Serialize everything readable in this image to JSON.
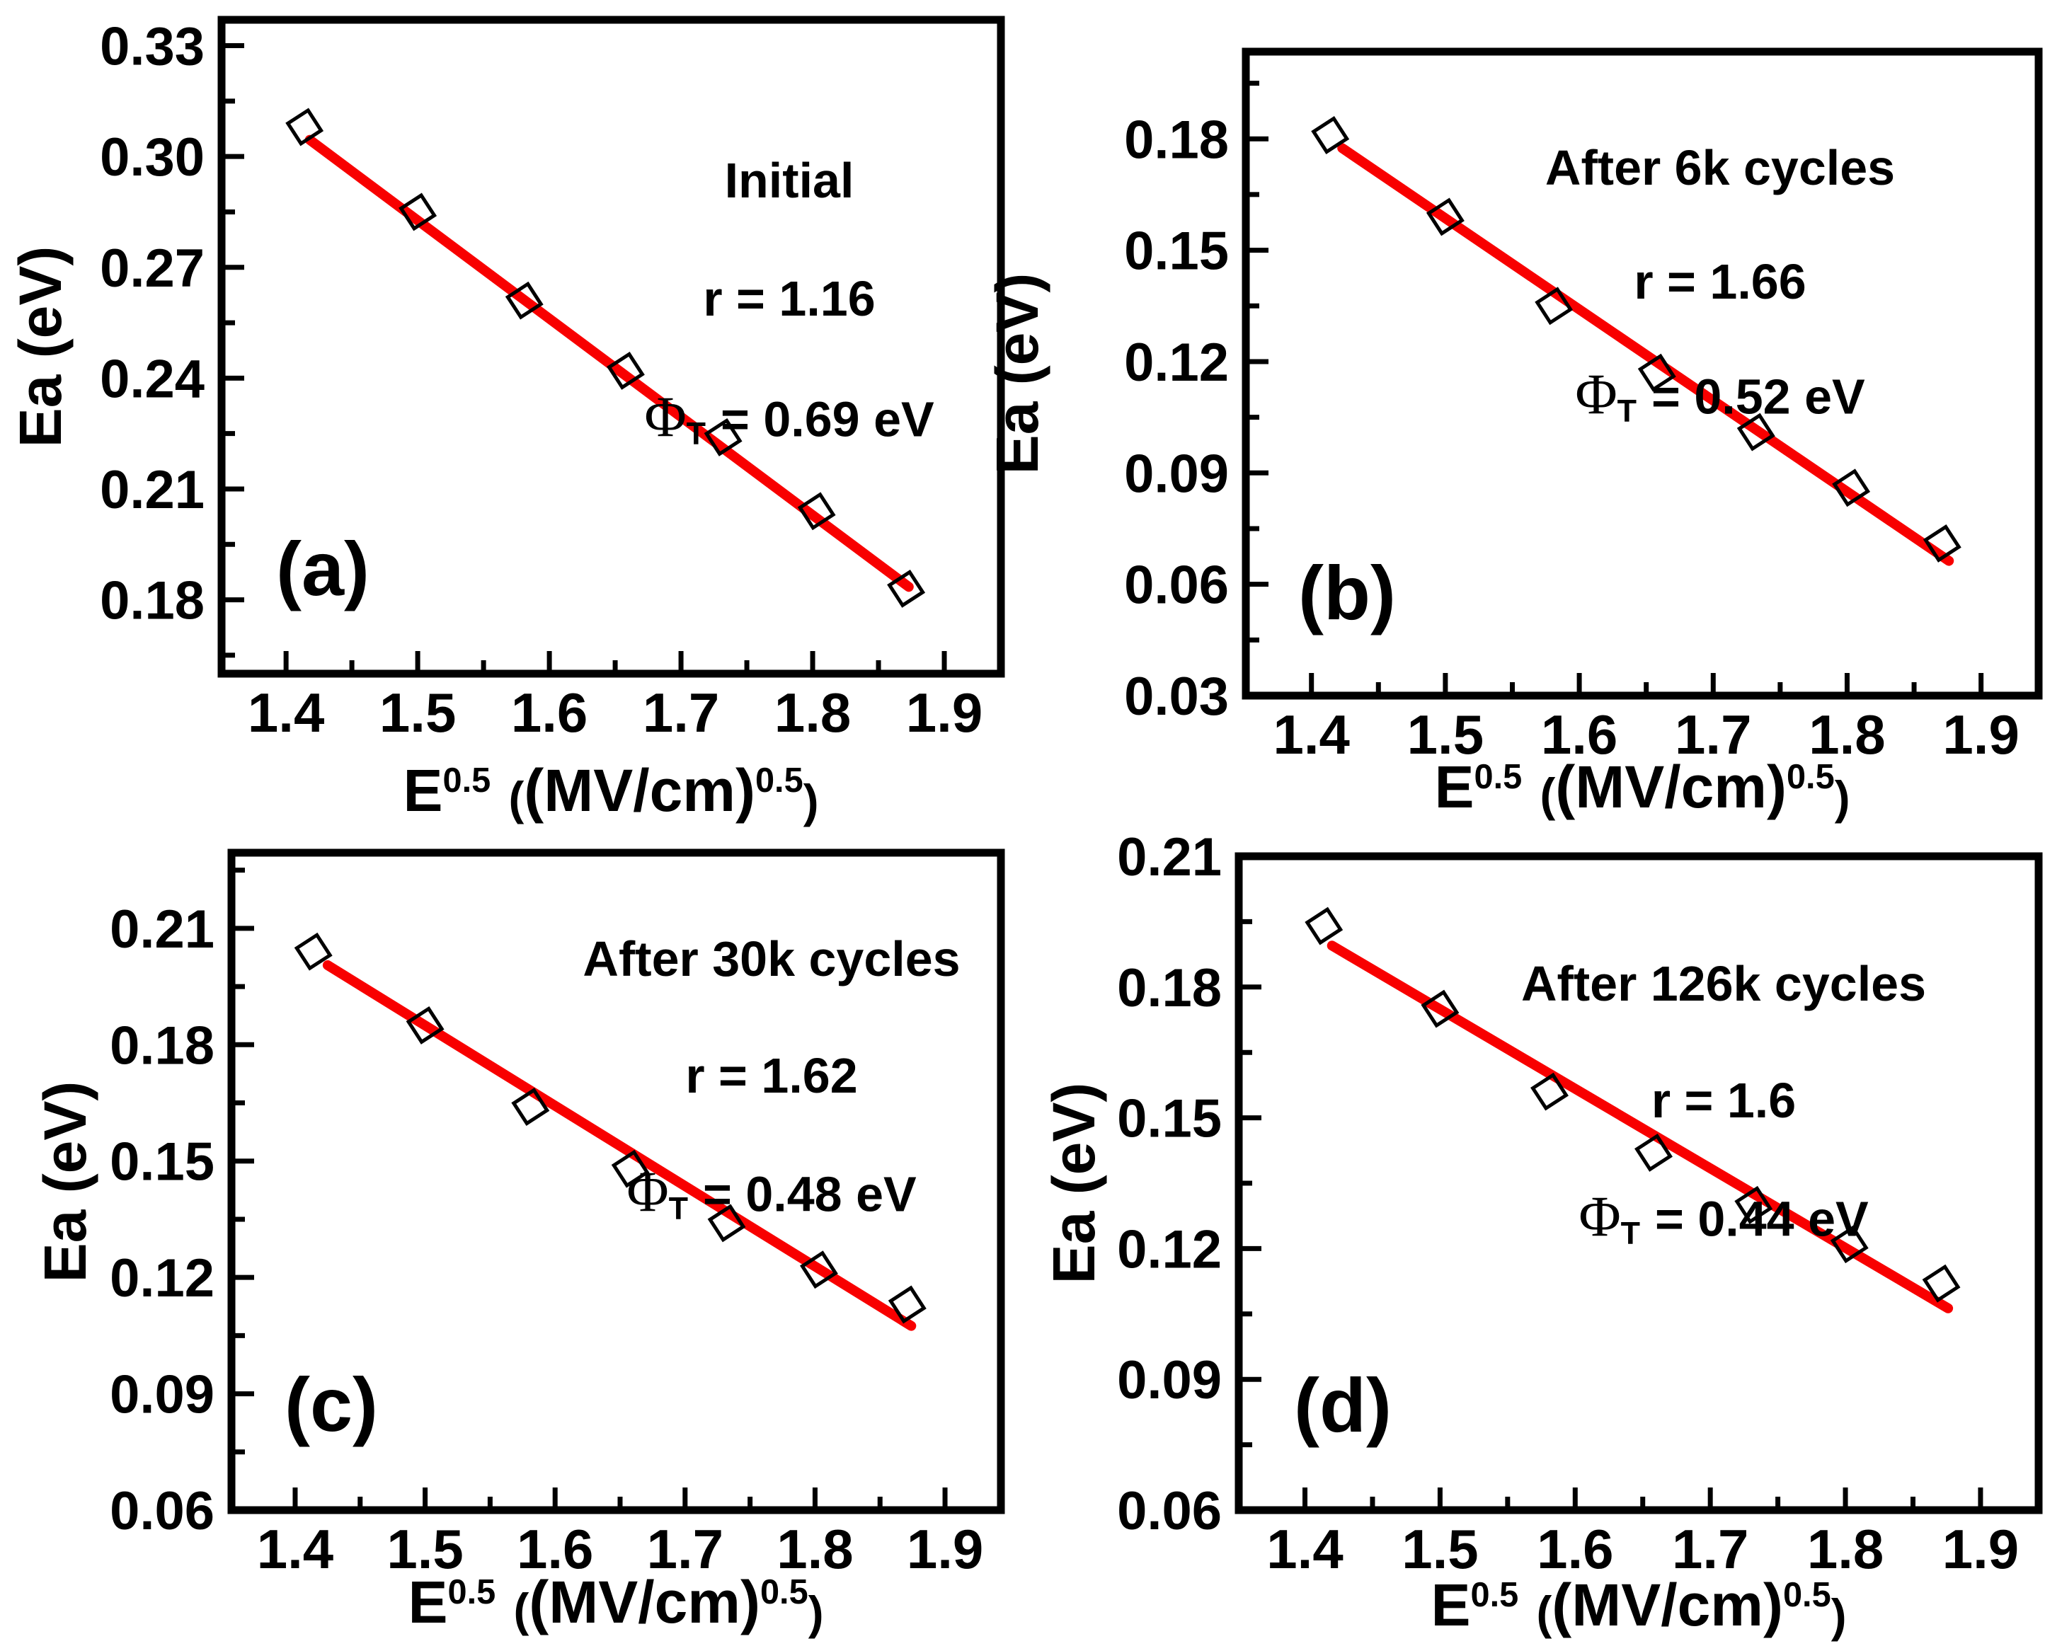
{
  "figure": {
    "background": "#ffffff",
    "ink": "#000000",
    "accent_red": "#f80000",
    "ylabel": "Ea (eV)",
    "xlabel": {
      "base": "E",
      "sup1": "0.5",
      "open": "(",
      "inner": "(MV/cm)",
      "sup2": "0.5",
      "close": ")"
    }
  },
  "chart_data": [
    {
      "type": "scatter",
      "panel_label": "(a)",
      "annotation": {
        "title": "Initial",
        "r_text": "r = 1.16",
        "phi_symbol": "Φ",
        "phi_sub": "T",
        "phi_value": "= 0.69 eV"
      },
      "x": [
        1.414,
        1.5,
        1.581,
        1.658,
        1.732,
        1.803,
        1.871
      ],
      "y": [
        0.308,
        0.285,
        0.261,
        0.242,
        0.224,
        0.204,
        0.183
      ],
      "fit": {
        "x": [
          1.418,
          1.873
        ],
        "y": [
          0.3045,
          0.1835
        ]
      },
      "xlim": [
        1.351,
        1.943
      ],
      "ylim": [
        0.16,
        0.337
      ],
      "xticks": {
        "values": [
          1.4,
          1.5,
          1.6,
          1.7,
          1.8,
          1.9
        ],
        "labels": [
          "1.4",
          "1.5",
          "1.6",
          "1.7",
          "1.8",
          "1.9"
        ]
      },
      "yticks": {
        "values": [
          0.18,
          0.21,
          0.24,
          0.27,
          0.3,
          0.33
        ],
        "labels": [
          "0.18",
          "0.21",
          "0.24",
          "0.27",
          "0.30",
          "0.33"
        ]
      }
    },
    {
      "type": "scatter",
      "panel_label": "(b)",
      "annotation": {
        "title": "After 6k cycles",
        "r_text": "r = 1.66",
        "phi_symbol": "Φ",
        "phi_sub": "T",
        "phi_value": "= 0.52 eV"
      },
      "x": [
        1.414,
        1.5,
        1.581,
        1.658,
        1.732,
        1.803,
        1.871
      ],
      "y": [
        0.181,
        0.159,
        0.135,
        0.117,
        0.101,
        0.086,
        0.071
      ],
      "fit": {
        "x": [
          1.423,
          1.876
        ],
        "y": [
          0.1775,
          0.0663
        ]
      },
      "xlim": [
        1.351,
        1.943
      ],
      "ylim": [
        0.03,
        0.2035
      ],
      "xticks": {
        "values": [
          1.4,
          1.5,
          1.6,
          1.7,
          1.8,
          1.9
        ],
        "labels": [
          "1.4",
          "1.5",
          "1.6",
          "1.7",
          "1.8",
          "1.9"
        ]
      },
      "yticks": {
        "values": [
          0.03,
          0.06,
          0.09,
          0.12,
          0.15,
          0.18
        ],
        "labels": [
          "0.03",
          "0.06",
          "0.09",
          "0.12",
          "0.15",
          "0.18"
        ]
      }
    },
    {
      "type": "scatter",
      "panel_label": "(c)",
      "annotation": {
        "title": "After 30k cycles",
        "r_text": "r = 1.62",
        "phi_symbol": "Φ",
        "phi_sub": "T",
        "phi_value": "= 0.48 eV"
      },
      "x": [
        1.414,
        1.5,
        1.581,
        1.658,
        1.732,
        1.803,
        1.871
      ],
      "y": [
        0.204,
        0.185,
        0.164,
        0.148,
        0.134,
        0.122,
        0.113
      ],
      "fit": {
        "x": [
          1.425,
          1.874
        ],
        "y": [
          0.2005,
          0.1075
        ]
      },
      "xlim": [
        1.351,
        1.943
      ],
      "ylim": [
        0.06,
        0.2295
      ],
      "xticks": {
        "values": [
          1.4,
          1.5,
          1.6,
          1.7,
          1.8,
          1.9
        ],
        "labels": [
          "1.4",
          "1.5",
          "1.6",
          "1.7",
          "1.8",
          "1.9"
        ]
      },
      "yticks": {
        "values": [
          0.06,
          0.09,
          0.12,
          0.15,
          0.18,
          0.21
        ],
        "labels": [
          "0.06",
          "0.09",
          "0.12",
          "0.15",
          "0.18",
          "0.21"
        ]
      }
    },
    {
      "type": "scatter",
      "panel_label": "(d)",
      "annotation": {
        "title": "After 126k cycles",
        "r_text": "r = 1.6",
        "phi_symbol": "Φ",
        "phi_sub": "T",
        "phi_value": "= 0.44 eV"
      },
      "x": [
        1.414,
        1.5,
        1.581,
        1.658,
        1.732,
        1.803,
        1.871
      ],
      "y": [
        0.194,
        0.175,
        0.156,
        0.142,
        0.13,
        0.121,
        0.112
      ],
      "fit": {
        "x": [
          1.42,
          1.876
        ],
        "y": [
          0.1895,
          0.1063
        ]
      },
      "xlim": [
        1.351,
        1.943
      ],
      "ylim": [
        0.06,
        0.21
      ],
      "xticks": {
        "values": [
          1.4,
          1.5,
          1.6,
          1.7,
          1.8,
          1.9
        ],
        "labels": [
          "1.4",
          "1.5",
          "1.6",
          "1.7",
          "1.8",
          "1.9"
        ]
      },
      "yticks": {
        "values": [
          0.06,
          0.09,
          0.12,
          0.15,
          0.18,
          0.21
        ],
        "labels": [
          "0.06",
          "0.09",
          "0.12",
          "0.15",
          "0.18",
          "0.21"
        ]
      }
    }
  ]
}
